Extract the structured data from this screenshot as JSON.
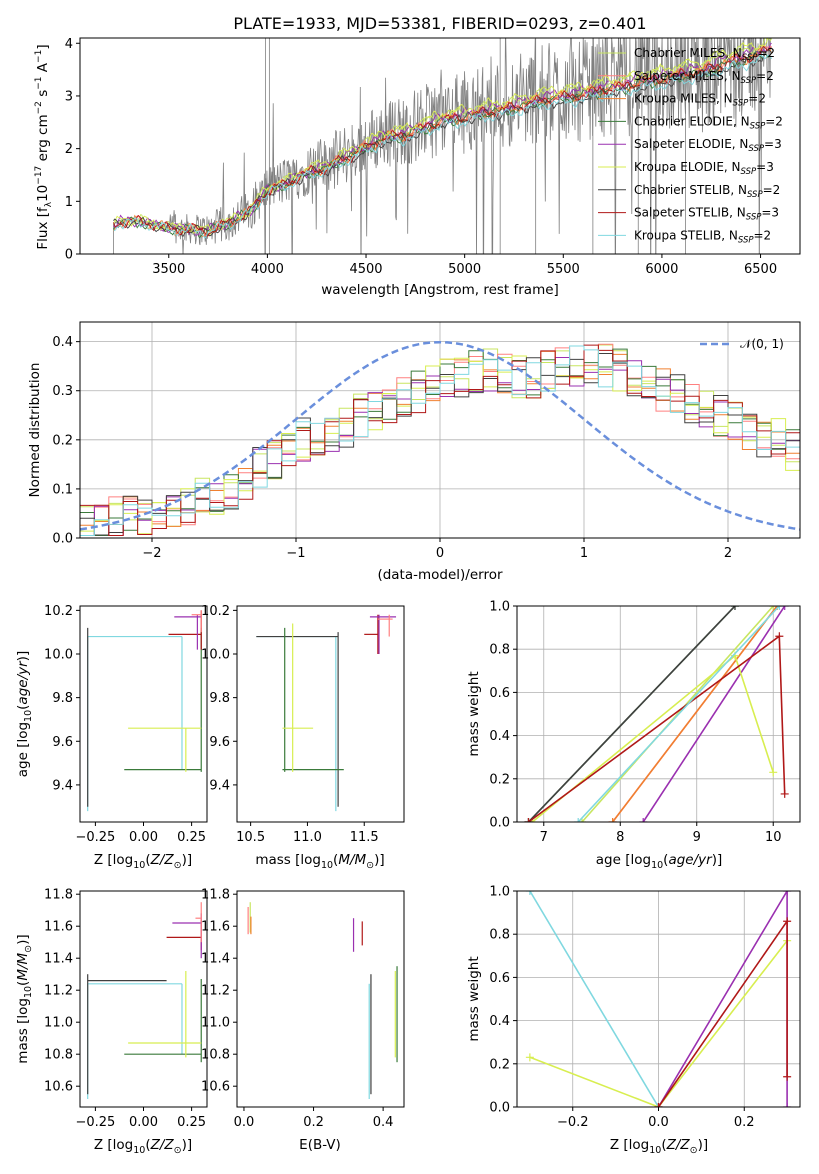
{
  "figure_title": "PLATE=1933, MJD=53381, FIBERID=0293, z=0.401",
  "colors": {
    "data": "#808080",
    "Chabrier MILES": "#c8e660",
    "Salpeter MILES": "#ff8080",
    "Kroupa MILES": "#f08030",
    "Chabrier ELODIE": "#3a7a3a",
    "Salpeter ELODIE": "#9a30b0",
    "Kroupa ELODIE": "#d8ee50",
    "Chabrier STELIB": "#404040",
    "Salpeter STELIB": "#b01818",
    "Kroupa STELIB": "#80d8e0",
    "gaussian": "#6a8fdc"
  },
  "chart_data": [
    {
      "id": "spectrum",
      "type": "line",
      "title": "PLATE=1933, MJD=53381, FIBERID=0293, z=0.401",
      "xlabel": "wavelength [Angstrom, rest frame]",
      "ylabel": "Flux [f_λ10^-17 erg cm^-2 s^-1 A^-1]",
      "xlim": [
        3050,
        6700
      ],
      "ylim": [
        0,
        4.1
      ],
      "xticks": [
        3500,
        4000,
        4500,
        5000,
        5500,
        6000,
        6500
      ],
      "yticks": [
        0,
        1,
        2,
        3,
        4
      ],
      "grid": false,
      "legend_position": "top-right",
      "continuum_anchors": {
        "x": [
          3220,
          3250,
          3300,
          3400,
          3500,
          3600,
          3700,
          3800,
          3900,
          4000,
          4100,
          4200,
          4300,
          4400,
          4500,
          4600,
          4700,
          4800,
          4900,
          5000,
          5100,
          5200,
          5300,
          5400,
          5500,
          5600,
          5700,
          5800,
          5900,
          6000,
          6100,
          6200,
          6300,
          6400,
          6500,
          6550
        ],
        "y": [
          0.55,
          0.62,
          0.65,
          0.6,
          0.5,
          0.48,
          0.45,
          0.6,
          0.8,
          1.25,
          1.4,
          1.6,
          1.7,
          1.9,
          2.1,
          2.3,
          2.35,
          2.5,
          2.65,
          2.7,
          2.8,
          2.85,
          2.95,
          3.05,
          3.1,
          3.15,
          3.25,
          3.3,
          3.4,
          3.45,
          3.55,
          3.6,
          3.75,
          3.85,
          3.95,
          4.05
        ]
      },
      "series": [
        {
          "name": "Chabrier MILES, N_SSP=2",
          "label": "Chabrier MILES, N",
          "sub": "SSP",
          "suffix": "=2",
          "color_key": "Chabrier MILES",
          "scale": 1.0
        },
        {
          "name": "Salpeter MILES, N_SSP=2",
          "label": "Salpeter MILES, N",
          "sub": "SSP",
          "suffix": "=2",
          "color_key": "Salpeter MILES",
          "scale": 0.97
        },
        {
          "name": "Kroupa MILES, N_SSP=2",
          "label": "Kroupa MILES, N",
          "sub": "SSP",
          "suffix": "=2",
          "color_key": "Kroupa MILES",
          "scale": 0.96
        },
        {
          "name": "Chabrier ELODIE, N_SSP=2",
          "label": "Chabrier ELODIE, N",
          "sub": "SSP",
          "suffix": "=2",
          "color_key": "Chabrier ELODIE",
          "scale": 0.95
        },
        {
          "name": "Salpeter ELODIE, N_SSP=3",
          "label": "Salpeter ELODIE, N",
          "sub": "SSP",
          "suffix": "=3",
          "color_key": "Salpeter ELODIE",
          "scale": 0.98
        },
        {
          "name": "Kroupa ELODIE, N_SSP=3",
          "label": "Kroupa ELODIE, N",
          "sub": "SSP",
          "suffix": "=3",
          "color_key": "Kroupa ELODIE",
          "scale": 1.01
        },
        {
          "name": "Chabrier STELIB, N_SSP=2",
          "label": "Chabrier STELIB, N",
          "sub": "SSP",
          "suffix": "=2",
          "color_key": "Chabrier STELIB",
          "scale": 0.94
        },
        {
          "name": "Salpeter STELIB, N_SSP=3",
          "label": "Salpeter STELIB, N",
          "sub": "SSP",
          "suffix": "=3",
          "color_key": "Salpeter STELIB",
          "scale": 0.96
        },
        {
          "name": "Kroupa STELIB, N_SSP=2",
          "label": "Kroupa STELIB, N",
          "sub": "SSP",
          "suffix": "=2",
          "color_key": "Kroupa STELIB",
          "scale": 0.93
        }
      ]
    },
    {
      "id": "residuals",
      "type": "line",
      "xlabel": "(data-model)/error",
      "ylabel": "Normed distribution",
      "xlim": [
        -2.5,
        2.5
      ],
      "ylim": [
        0,
        0.44
      ],
      "xticks": [
        -2,
        -1,
        0,
        1,
        2
      ],
      "yticks": [
        0.0,
        0.1,
        0.2,
        0.3,
        0.4
      ],
      "grid": true,
      "legend": "𝒩(0, 1)",
      "legend_position": "top-right",
      "bin_edges_start": -2.5,
      "bin_width": 0.1,
      "base_hist": [
        0.03,
        0.03,
        0.04,
        0.05,
        0.05,
        0.06,
        0.06,
        0.07,
        0.08,
        0.09,
        0.1,
        0.12,
        0.14,
        0.16,
        0.18,
        0.2,
        0.21,
        0.22,
        0.23,
        0.25,
        0.26,
        0.28,
        0.29,
        0.3,
        0.31,
        0.32,
        0.33,
        0.34,
        0.34,
        0.34,
        0.33,
        0.33,
        0.34,
        0.35,
        0.35,
        0.36,
        0.35,
        0.34,
        0.33,
        0.32,
        0.3,
        0.29,
        0.27,
        0.26,
        0.25,
        0.24,
        0.22,
        0.21,
        0.2,
        0.18
      ]
    },
    {
      "id": "age_vs_Z",
      "type": "scatter",
      "xlabel": "Z [log10(Z/Z⊙)]",
      "ylabel": "age [log10(age/yr)]",
      "xlim": [
        -0.33,
        0.33
      ],
      "ylim": [
        9.23,
        10.22
      ],
      "xticks": [
        -0.25,
        0.0,
        0.25
      ],
      "yticks": [
        9.4,
        9.6,
        9.8,
        10.0,
        10.2
      ]
    },
    {
      "id": "age_vs_mass",
      "type": "scatter",
      "xlabel": "mass [log10(M/M⊙)]",
      "xlim": [
        10.38,
        11.85
      ],
      "ylim": [
        9.23,
        10.22
      ],
      "xticks": [
        10.5,
        11.0,
        11.5
      ],
      "yticks": [
        9.4,
        9.6,
        9.8,
        10.0,
        10.2
      ]
    },
    {
      "id": "massweight_vs_age",
      "type": "line",
      "xlabel": "age [log10(age/yr)]",
      "ylabel": "mass weight",
      "xlim": [
        6.65,
        10.35
      ],
      "ylim": [
        0,
        1
      ],
      "xticks": [
        7,
        8,
        9,
        10
      ],
      "yticks": [
        0.0,
        0.2,
        0.4,
        0.6,
        0.8,
        1.0
      ],
      "grid": true,
      "series": [
        {
          "color_key": "Chabrier MILES",
          "x": [
            7.5,
            10.0
          ],
          "y": [
            0.0,
            1.0
          ]
        },
        {
          "color_key": "Salpeter MILES",
          "x": [
            7.9,
            10.05
          ],
          "y": [
            0.0,
            1.0
          ]
        },
        {
          "color_key": "Kroupa MILES",
          "x": [
            7.9,
            10.05
          ],
          "y": [
            0.0,
            1.0
          ]
        },
        {
          "color_key": "Chabrier ELODIE",
          "x": [
            6.8,
            9.5
          ],
          "y": [
            0.0,
            1.0
          ]
        },
        {
          "color_key": "Salpeter ELODIE",
          "x": [
            8.3,
            10.15
          ],
          "y": [
            0.0,
            1.0
          ]
        },
        {
          "color_key": "Kroupa ELODIE",
          "x": [
            6.85,
            9.5,
            10.0
          ],
          "y": [
            0.0,
            0.77,
            0.23
          ]
        },
        {
          "color_key": "Chabrier STELIB",
          "x": [
            6.8,
            9.5
          ],
          "y": [
            0.0,
            1.0
          ]
        },
        {
          "color_key": "Salpeter STELIB",
          "x": [
            6.8,
            10.08,
            10.15
          ],
          "y": [
            0.0,
            0.86,
            0.13
          ]
        },
        {
          "color_key": "Kroupa STELIB",
          "x": [
            7.45,
            10.08
          ],
          "y": [
            0.0,
            1.0
          ]
        }
      ]
    },
    {
      "id": "mass_vs_Z",
      "type": "scatter",
      "xlabel": "Z [log10(Z/Z⊙)]",
      "ylabel": "mass [log10(M/M⊙)]",
      "xlim": [
        -0.33,
        0.33
      ],
      "ylim": [
        10.47,
        11.82
      ],
      "xticks": [
        -0.25,
        0.0,
        0.25
      ],
      "yticks": [
        10.6,
        10.8,
        11.0,
        11.2,
        11.4,
        11.6,
        11.8
      ]
    },
    {
      "id": "mass_vs_EBV",
      "type": "scatter",
      "xlabel": "E(B-V)",
      "xlim": [
        -0.02,
        0.46
      ],
      "ylim": [
        10.47,
        11.82
      ],
      "xticks": [
        0.0,
        0.2,
        0.4
      ],
      "yticks": [
        10.6,
        10.8,
        11.0,
        11.2,
        11.4,
        11.6,
        11.8
      ]
    },
    {
      "id": "massweight_vs_Z",
      "type": "line",
      "xlabel": "Z [log10(Z/Z⊙)]",
      "ylabel": "mass weight",
      "xlim": [
        -0.33,
        0.33
      ],
      "ylim": [
        0,
        1
      ],
      "xticks": [
        -0.2,
        0.0,
        0.2
      ],
      "yticks": [
        0.0,
        0.2,
        0.4,
        0.6,
        0.8,
        1.0
      ],
      "grid": true,
      "series": [
        {
          "color_key": "Kroupa STELIB",
          "x": [
            -0.3,
            0.0
          ],
          "y": [
            1.0,
            0.0
          ]
        },
        {
          "color_key": "Kroupa ELODIE",
          "x": [
            -0.3,
            0.0,
            0.3
          ],
          "y": [
            0.23,
            0.0,
            0.77
          ]
        },
        {
          "color_key": "Salpeter ELODIE",
          "x": [
            0.0,
            0.3,
            0.3
          ],
          "y": [
            0.0,
            1.0,
            0.0
          ]
        },
        {
          "color_key": "Salpeter STELIB",
          "x": [
            0.0,
            0.3,
            0.3
          ],
          "y": [
            0.0,
            0.86,
            0.14
          ]
        }
      ]
    }
  ]
}
